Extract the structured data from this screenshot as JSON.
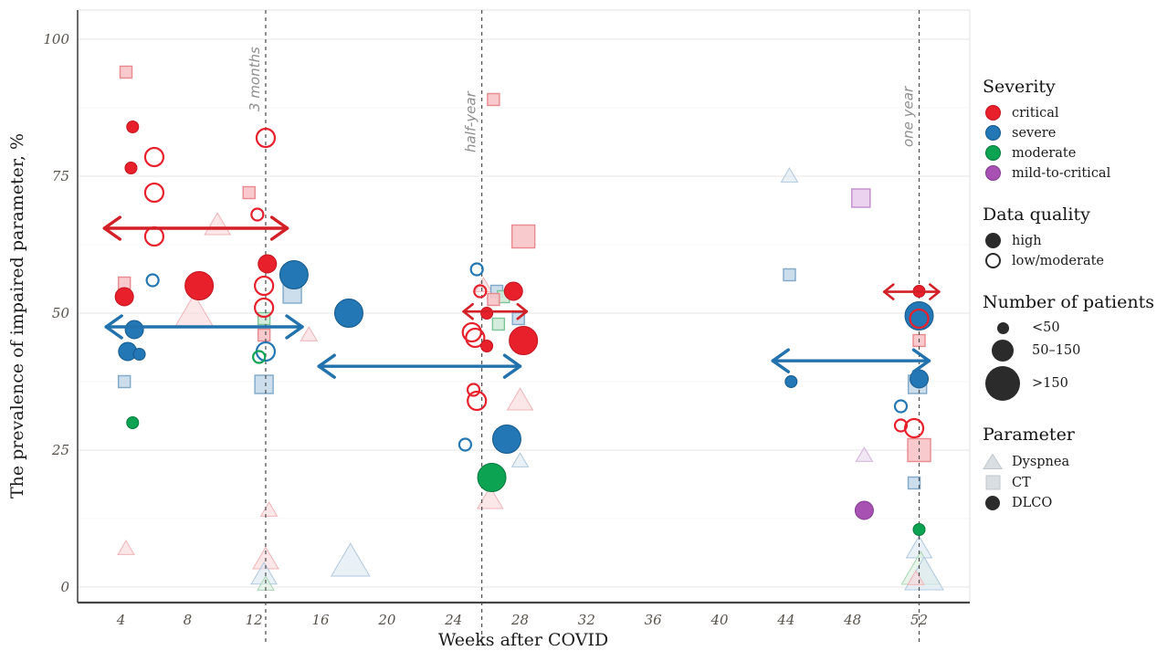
{
  "figure": {
    "xlabel": "Weeks after COVID",
    "ylabel": "The prevalence of impaired parameter, %"
  },
  "colors": {
    "axis": "#454545",
    "grid_major": "#e9e9e9",
    "grid_minor": "#f4f4f4",
    "panel_edge": "#e0e0e0",
    "dashed_line": "#4d4d4d",
    "annotation_text": "#8e8e8e",
    "severity": {
      "critical": {
        "solid": "#e8202b",
        "border": "#c2141f",
        "pale": "#f7c4c8",
        "paleBorder": "#e9898f",
        "tri": "#f9d9db",
        "triBorder": "#f0b4b8",
        "arrow": "#d31f26"
      },
      "severe": {
        "solid": "#2277b4",
        "border": "#15598c",
        "pale": "#c7d9ea",
        "paleBorder": "#7fa8c9",
        "tri": "#dde8f1",
        "triBorder": "#b0c9dd",
        "arrow": "#2272ae"
      },
      "moderate": {
        "solid": "#0ca353",
        "border": "#067a3c",
        "pale": "#cfead7",
        "paleBorder": "#7cc497",
        "tri": "#dcefe0",
        "triBorder": "#a8d6b4",
        "arrow": "#0ca353"
      },
      "mild-to-critical": {
        "solid": "#a751b3",
        "border": "#833c8e",
        "pale": "#e9cdec",
        "paleBorder": "#c08ccc",
        "tri": "#ead8ec",
        "triBorder": "#d3b2d8",
        "arrow": "#a751b3"
      }
    },
    "legend_dark": "#2b2b2b",
    "legend_gray_fill": "#d9dee2",
    "legend_gray_border": "#bfc6cc"
  },
  "chart_data": {
    "type": "scatter",
    "title": "",
    "xlabel": "Weeks after COVID",
    "ylabel": "The prevalence of impaired parameter, %",
    "x_ticks": [
      4,
      8,
      12,
      16,
      20,
      24,
      28,
      32,
      36,
      40,
      44,
      48,
      52
    ],
    "y_ticks": [
      0,
      25,
      50,
      75,
      100
    ],
    "xlim": [
      1.4,
      55.0
    ],
    "ylim": [
      -2.8,
      105.3
    ],
    "grid": "horizontal, major every 25 with faint minor every 12.5",
    "legend_position": "right",
    "reference_lines": [
      {
        "week": 12.7,
        "label": "3 months"
      },
      {
        "week": 25.7,
        "label": "half-year"
      },
      {
        "week": 52.0,
        "label": "one year"
      }
    ],
    "arrows": [
      {
        "severity": "critical",
        "from_week": 3.0,
        "to_week": 14.0,
        "pct": 65.5,
        "style": "big"
      },
      {
        "severity": "severe",
        "from_week": 3.1,
        "to_week": 14.9,
        "pct": 47.5,
        "style": "big"
      },
      {
        "severity": "severe",
        "from_week": 15.9,
        "to_week": 28.0,
        "pct": 40.3,
        "style": "big"
      },
      {
        "severity": "critical",
        "from_week": 24.6,
        "to_week": 28.4,
        "pct": 50.3,
        "style": "small"
      },
      {
        "severity": "severe",
        "from_week": 43.2,
        "to_week": 52.6,
        "pct": 41.3,
        "style": "big"
      },
      {
        "severity": "critical",
        "from_week": 49.9,
        "to_week": 53.2,
        "pct": 53.9,
        "style": "small"
      }
    ],
    "points": [
      {
        "week": 4.3,
        "pct": 94,
        "severity": "critical",
        "parameter": "CT",
        "quality": "low/moderate",
        "patients": "<50"
      },
      {
        "week": 4.7,
        "pct": 84,
        "severity": "critical",
        "parameter": "DLCO",
        "quality": "high",
        "patients": "<50"
      },
      {
        "week": 6.0,
        "pct": 78.5,
        "severity": "critical",
        "parameter": "DLCO",
        "quality": "low/moderate",
        "patients": "50–150"
      },
      {
        "week": 4.6,
        "pct": 76.5,
        "severity": "critical",
        "parameter": "DLCO",
        "quality": "high",
        "patients": "<50"
      },
      {
        "week": 6.0,
        "pct": 72,
        "severity": "critical",
        "parameter": "DLCO",
        "quality": "low/moderate",
        "patients": "50–150"
      },
      {
        "week": 6.0,
        "pct": 64,
        "severity": "critical",
        "parameter": "DLCO",
        "quality": "low/moderate",
        "patients": "50–150"
      },
      {
        "week": 9.8,
        "pct": 66,
        "severity": "critical",
        "parameter": "Dyspnea",
        "quality": "low/moderate",
        "patients": "50–150"
      },
      {
        "week": 11.7,
        "pct": 72,
        "severity": "critical",
        "parameter": "CT",
        "quality": "low/moderate",
        "patients": "<50"
      },
      {
        "week": 4.2,
        "pct": 55.5,
        "severity": "critical",
        "parameter": "CT",
        "quality": "low/moderate",
        "patients": "<50"
      },
      {
        "week": 5.9,
        "pct": 56,
        "severity": "severe",
        "parameter": "DLCO",
        "quality": "low/moderate",
        "patients": "<50"
      },
      {
        "week": 4.2,
        "pct": 53,
        "severity": "critical",
        "parameter": "DLCO",
        "quality": "high",
        "patients": "50–150"
      },
      {
        "week": 8.7,
        "pct": 55,
        "severity": "critical",
        "parameter": "DLCO",
        "quality": "high",
        "patients": ">150"
      },
      {
        "week": 8.4,
        "pct": 50,
        "severity": "critical",
        "parameter": "Dyspnea",
        "quality": "low/moderate",
        "patients": ">150"
      },
      {
        "week": 4.8,
        "pct": 47,
        "severity": "severe",
        "parameter": "DLCO",
        "quality": "high",
        "patients": "50–150"
      },
      {
        "week": 4.4,
        "pct": 43,
        "severity": "severe",
        "parameter": "DLCO",
        "quality": "high",
        "patients": "50–150"
      },
      {
        "week": 5.1,
        "pct": 42.5,
        "severity": "severe",
        "parameter": "DLCO",
        "quality": "high",
        "patients": "<50"
      },
      {
        "week": 4.2,
        "pct": 37.5,
        "severity": "severe",
        "parameter": "CT",
        "quality": "low/moderate",
        "patients": "<50"
      },
      {
        "week": 4.7,
        "pct": 30,
        "severity": "moderate",
        "parameter": "DLCO",
        "quality": "high",
        "patients": "<50"
      },
      {
        "week": 4.3,
        "pct": 7,
        "severity": "critical",
        "parameter": "Dyspnea",
        "quality": "low/moderate",
        "patients": "<50"
      },
      {
        "week": 12.7,
        "pct": 82,
        "severity": "critical",
        "parameter": "DLCO",
        "quality": "low/moderate",
        "patients": "50–150"
      },
      {
        "week": 12.2,
        "pct": 68,
        "severity": "critical",
        "parameter": "DLCO",
        "quality": "low/moderate",
        "patients": "<50"
      },
      {
        "week": 12.8,
        "pct": 59,
        "severity": "critical",
        "parameter": "DLCO",
        "quality": "high",
        "patients": "50–150"
      },
      {
        "week": 12.6,
        "pct": 55,
        "severity": "critical",
        "parameter": "DLCO",
        "quality": "low/moderate",
        "patients": "50–150"
      },
      {
        "week": 12.6,
        "pct": 51,
        "severity": "critical",
        "parameter": "DLCO",
        "quality": "low/moderate",
        "patients": "50–150"
      },
      {
        "week": 12.6,
        "pct": 49,
        "severity": "moderate",
        "parameter": "CT",
        "quality": "low/moderate",
        "patients": "<50"
      },
      {
        "week": 12.6,
        "pct": 46,
        "severity": "critical",
        "parameter": "CT",
        "quality": "low/moderate",
        "patients": "<50"
      },
      {
        "week": 12.7,
        "pct": 43,
        "severity": "severe",
        "parameter": "DLCO",
        "quality": "low/moderate",
        "patients": "50–150"
      },
      {
        "week": 12.3,
        "pct": 42,
        "severity": "moderate",
        "parameter": "DLCO",
        "quality": "low/moderate",
        "patients": "<50"
      },
      {
        "week": 12.6,
        "pct": 37,
        "severity": "severe",
        "parameter": "CT",
        "quality": "low/moderate",
        "patients": "50–150"
      },
      {
        "week": 14.4,
        "pct": 57,
        "severity": "severe",
        "parameter": "DLCO",
        "quality": "high",
        "patients": ">150"
      },
      {
        "week": 14.3,
        "pct": 53.5,
        "severity": "severe",
        "parameter": "CT",
        "quality": "low/moderate",
        "patients": "50–150"
      },
      {
        "week": 15.3,
        "pct": 46,
        "severity": "critical",
        "parameter": "Dyspnea",
        "quality": "low/moderate",
        "patients": "<50"
      },
      {
        "week": 12.9,
        "pct": 14,
        "severity": "critical",
        "parameter": "Dyspnea",
        "quality": "low/moderate",
        "patients": "<50"
      },
      {
        "week": 12.7,
        "pct": 5,
        "severity": "critical",
        "parameter": "Dyspnea",
        "quality": "low/moderate",
        "patients": "50–150"
      },
      {
        "week": 12.6,
        "pct": 2.2,
        "severity": "severe",
        "parameter": "Dyspnea",
        "quality": "low/moderate",
        "patients": "50–150"
      },
      {
        "week": 12.7,
        "pct": 0.5,
        "severity": "moderate",
        "parameter": "Dyspnea",
        "quality": "low/moderate",
        "patients": "<50"
      },
      {
        "week": 17.7,
        "pct": 50,
        "severity": "severe",
        "parameter": "DLCO",
        "quality": "high",
        "patients": ">150"
      },
      {
        "week": 17.8,
        "pct": 4.5,
        "severity": "severe",
        "parameter": "Dyspnea",
        "quality": "low/moderate",
        "patients": ">150"
      },
      {
        "week": 26.4,
        "pct": 89,
        "severity": "critical",
        "parameter": "CT",
        "quality": "low/moderate",
        "patients": "<50"
      },
      {
        "week": 28.2,
        "pct": 64,
        "severity": "critical",
        "parameter": "CT",
        "quality": "low/moderate",
        "patients": ">150"
      },
      {
        "week": 25.4,
        "pct": 58,
        "severity": "severe",
        "parameter": "DLCO",
        "quality": "low/moderate",
        "patients": "<50"
      },
      {
        "week": 25.6,
        "pct": 54,
        "severity": "critical",
        "parameter": "DLCO",
        "quality": "low/moderate",
        "patients": "<50"
      },
      {
        "week": 27.6,
        "pct": 54,
        "severity": "critical",
        "parameter": "DLCO",
        "quality": "high",
        "patients": "50–150"
      },
      {
        "week": 26.6,
        "pct": 54,
        "severity": "severe",
        "parameter": "CT",
        "quality": "low/moderate",
        "patients": "<50"
      },
      {
        "week": 27.0,
        "pct": 53,
        "severity": "moderate",
        "parameter": "CT",
        "quality": "low/moderate",
        "patients": "<50"
      },
      {
        "week": 26.4,
        "pct": 52.5,
        "severity": "critical",
        "parameter": "CT",
        "quality": "low/moderate",
        "patients": "<50"
      },
      {
        "week": 25.8,
        "pct": 55,
        "severity": "critical",
        "parameter": "Dyspnea",
        "quality": "low/moderate",
        "patients": "<50"
      },
      {
        "week": 26.0,
        "pct": 50,
        "severity": "critical",
        "parameter": "DLCO",
        "quality": "high",
        "patients": "<50"
      },
      {
        "week": 27.9,
        "pct": 49,
        "severity": "severe",
        "parameter": "CT",
        "quality": "low/moderate",
        "patients": "<50"
      },
      {
        "week": 26.7,
        "pct": 48,
        "severity": "moderate",
        "parameter": "CT",
        "quality": "low/moderate",
        "patients": "<50"
      },
      {
        "week": 25.1,
        "pct": 46.5,
        "severity": "critical",
        "parameter": "DLCO",
        "quality": "low/moderate",
        "patients": "50–150"
      },
      {
        "week": 25.3,
        "pct": 45.5,
        "severity": "critical",
        "parameter": "DLCO",
        "quality": "low/moderate",
        "patients": "50–150"
      },
      {
        "week": 26.0,
        "pct": 44,
        "severity": "critical",
        "parameter": "DLCO",
        "quality": "high",
        "patients": "<50"
      },
      {
        "week": 28.2,
        "pct": 45,
        "severity": "critical",
        "parameter": "DLCO",
        "quality": "high",
        "patients": ">150"
      },
      {
        "week": 25.2,
        "pct": 36,
        "severity": "critical",
        "parameter": "DLCO",
        "quality": "low/moderate",
        "patients": "<50"
      },
      {
        "week": 25.4,
        "pct": 34,
        "severity": "critical",
        "parameter": "DLCO",
        "quality": "low/moderate",
        "patients": "50–150"
      },
      {
        "week": 28.0,
        "pct": 34,
        "severity": "critical",
        "parameter": "Dyspnea",
        "quality": "low/moderate",
        "patients": "50–150"
      },
      {
        "week": 24.7,
        "pct": 26,
        "severity": "severe",
        "parameter": "DLCO",
        "quality": "low/moderate",
        "patients": "<50"
      },
      {
        "week": 27.2,
        "pct": 27,
        "severity": "severe",
        "parameter": "DLCO",
        "quality": "high",
        "patients": ">150"
      },
      {
        "week": 26.3,
        "pct": 20,
        "severity": "moderate",
        "parameter": "DLCO",
        "quality": "high",
        "patients": ">150"
      },
      {
        "week": 28.0,
        "pct": 23,
        "severity": "severe",
        "parameter": "Dyspnea",
        "quality": "low/moderate",
        "patients": "<50"
      },
      {
        "week": 26.2,
        "pct": 16,
        "severity": "critical",
        "parameter": "Dyspnea",
        "quality": "low/moderate",
        "patients": "50–150"
      },
      {
        "week": 44.2,
        "pct": 75,
        "severity": "severe",
        "parameter": "Dyspnea",
        "quality": "low/moderate",
        "patients": "<50"
      },
      {
        "week": 48.5,
        "pct": 71,
        "severity": "mild-to-critical",
        "parameter": "CT",
        "quality": "low/moderate",
        "patients": "50–150"
      },
      {
        "week": 44.2,
        "pct": 57,
        "severity": "severe",
        "parameter": "CT",
        "quality": "low/moderate",
        "patients": "<50"
      },
      {
        "week": 52.0,
        "pct": 54,
        "severity": "critical",
        "parameter": "DLCO",
        "quality": "high",
        "patients": "<50"
      },
      {
        "week": 52.0,
        "pct": 49.5,
        "severity": "severe",
        "parameter": "DLCO",
        "quality": "high",
        "patients": ">150"
      },
      {
        "week": 52.0,
        "pct": 49,
        "severity": "critical",
        "parameter": "DLCO",
        "quality": "low/moderate",
        "patients": "50–150"
      },
      {
        "week": 52.0,
        "pct": 45,
        "severity": "critical",
        "parameter": "CT",
        "quality": "low/moderate",
        "patients": "<50"
      },
      {
        "week": 44.3,
        "pct": 37.5,
        "severity": "severe",
        "parameter": "DLCO",
        "quality": "high",
        "patients": "<50"
      },
      {
        "week": 52.0,
        "pct": 38,
        "severity": "severe",
        "parameter": "DLCO",
        "quality": "high",
        "patients": "50–150"
      },
      {
        "week": 51.9,
        "pct": 37,
        "severity": "severe",
        "parameter": "CT",
        "quality": "low/moderate",
        "patients": "50–150"
      },
      {
        "week": 50.9,
        "pct": 33,
        "severity": "severe",
        "parameter": "DLCO",
        "quality": "low/moderate",
        "patients": "<50"
      },
      {
        "week": 50.9,
        "pct": 29.5,
        "severity": "critical",
        "parameter": "DLCO",
        "quality": "low/moderate",
        "patients": "<50"
      },
      {
        "week": 51.7,
        "pct": 29,
        "severity": "critical",
        "parameter": "DLCO",
        "quality": "low/moderate",
        "patients": "50–150"
      },
      {
        "week": 52.0,
        "pct": 25,
        "severity": "critical",
        "parameter": "CT",
        "quality": "low/moderate",
        "patients": ">150"
      },
      {
        "week": 48.7,
        "pct": 24,
        "severity": "mild-to-critical",
        "parameter": "Dyspnea",
        "quality": "low/moderate",
        "patients": "<50"
      },
      {
        "week": 51.7,
        "pct": 19,
        "severity": "severe",
        "parameter": "CT",
        "quality": "low/moderate",
        "patients": "<50"
      },
      {
        "week": 48.7,
        "pct": 14,
        "severity": "mild-to-critical",
        "parameter": "DLCO",
        "quality": "high",
        "patients": "50–150"
      },
      {
        "week": 52.0,
        "pct": 10.5,
        "severity": "moderate",
        "parameter": "DLCO",
        "quality": "high",
        "patients": "<50"
      },
      {
        "week": 52.0,
        "pct": 7,
        "severity": "severe",
        "parameter": "Dyspnea",
        "quality": "low/moderate",
        "patients": "50–150"
      },
      {
        "week": 52.1,
        "pct": 3,
        "severity": "moderate",
        "parameter": "Dyspnea",
        "quality": "low/moderate",
        "patients": ">150"
      },
      {
        "week": 52.3,
        "pct": 2,
        "severity": "severe",
        "parameter": "Dyspnea",
        "quality": "low/moderate",
        "patients": ">150"
      },
      {
        "week": 51.8,
        "pct": 1.5,
        "severity": "critical",
        "parameter": "Dyspnea",
        "quality": "low/moderate",
        "patients": "<50"
      }
    ]
  },
  "legend": {
    "severity": {
      "title": "Severity",
      "items": [
        {
          "label": "critical",
          "severity": "critical"
        },
        {
          "label": "severe",
          "severity": "severe"
        },
        {
          "label": "moderate",
          "severity": "moderate"
        },
        {
          "label": "mild-to-critical",
          "severity": "mild-to-critical"
        }
      ]
    },
    "data_quality": {
      "title": "Data quality",
      "items": [
        {
          "label": "high",
          "fill": "solid"
        },
        {
          "label": "low/moderate",
          "fill": "open"
        }
      ]
    },
    "patients": {
      "title": "Number of patients",
      "items": [
        {
          "label": "<50",
          "size": "s"
        },
        {
          "label": "50–150",
          "size": "m"
        },
        {
          "label": ">150",
          "size": "l"
        }
      ]
    },
    "parameter": {
      "title": "Parameter",
      "items": [
        {
          "label": "Dyspnea",
          "shape": "triangle"
        },
        {
          "label": "CT",
          "shape": "square"
        },
        {
          "label": "DLCO",
          "shape": "circle"
        }
      ]
    }
  }
}
